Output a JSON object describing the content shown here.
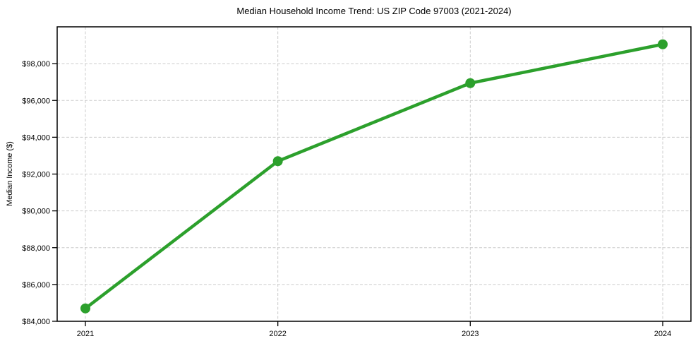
{
  "chart_data": {
    "type": "line",
    "title": "Median Household Income Trend: US ZIP Code 97003 (2021-2024)",
    "xlabel": "",
    "ylabel": "Median Income ($)",
    "x": [
      "2021",
      "2022",
      "2023",
      "2024"
    ],
    "values": [
      84700,
      92700,
      96940,
      99050
    ],
    "ylim": [
      84000,
      100000
    ],
    "yticks": [
      84000,
      86000,
      88000,
      90000,
      92000,
      94000,
      96000,
      98000
    ],
    "ytick_labels": [
      "$84,000",
      "$86,000",
      "$88,000",
      "$90,000",
      "$92,000",
      "$94,000",
      "$96,000",
      "$98,000"
    ],
    "grid": true,
    "grid_style": "dashed",
    "legend": "none",
    "line_color": "#2ca02c",
    "marker": "circle",
    "grid_color": "#cccccc",
    "axis_color": "#000000",
    "background_color": "#ffffff"
  }
}
